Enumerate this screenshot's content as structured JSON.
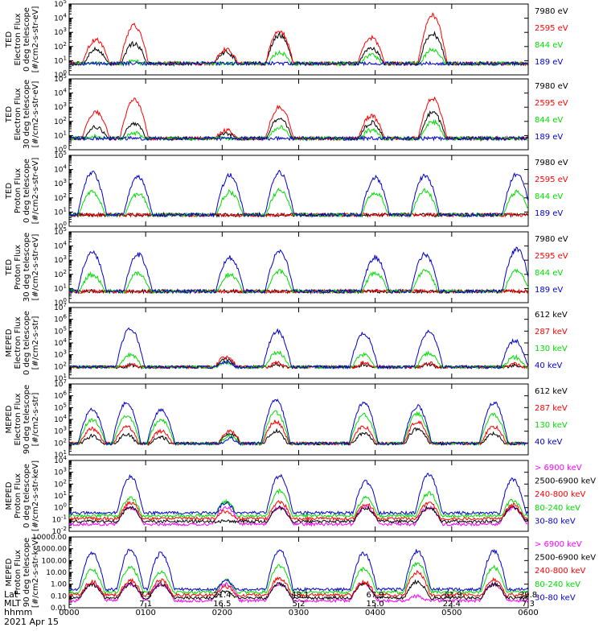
{
  "chart_data": [
    {
      "type": "line",
      "ylabel": [
        "TED",
        "Electron Flux",
        "0 deg telescope",
        "[#/cm2-s-str-eV]"
      ],
      "ylim": [
        1,
        100000
      ],
      "yscale": "log",
      "ytick_labels": [
        "10^0",
        "10^1",
        "10^2",
        "10^3",
        "10^4",
        "10^5"
      ],
      "series": [
        {
          "name": "7980 eV",
          "color": "#000000"
        },
        {
          "name": "2595 eV",
          "color": "#ff0000"
        },
        {
          "name": "844 eV",
          "color": "#00dd00"
        },
        {
          "name": "189 eV",
          "color": "#0000cc"
        }
      ],
      "bursts": [
        {
          "x": 0.35,
          "v": [
            1.8,
            2.5,
            0.8,
            0
          ]
        },
        {
          "x": 0.85,
          "v": [
            2.2,
            3.5,
            1.0,
            0
          ]
        },
        {
          "x": 2.05,
          "v": [
            1.6,
            1.8,
            0.6,
            0
          ]
        },
        {
          "x": 2.75,
          "v": [
            2.8,
            3.1,
            1.6,
            0
          ]
        },
        {
          "x": 3.95,
          "v": [
            1.9,
            2.6,
            1.4,
            0
          ]
        },
        {
          "x": 4.75,
          "v": [
            2.9,
            4.2,
            1.8,
            0
          ]
        }
      ]
    },
    {
      "type": "line",
      "ylabel": [
        "TED",
        "Electron Flux",
        "30 deg telescope",
        "[#/cm2-s-str-eV]"
      ],
      "ylim": [
        1,
        100000
      ],
      "yscale": "log",
      "ytick_labels": [
        "10^0",
        "10^1",
        "10^2",
        "10^3",
        "10^4",
        "10^5"
      ],
      "series": [
        {
          "name": "7980 eV",
          "color": "#000000"
        },
        {
          "name": "2595 eV",
          "color": "#ff0000"
        },
        {
          "name": "844 eV",
          "color": "#00dd00"
        },
        {
          "name": "189 eV",
          "color": "#0000cc"
        }
      ],
      "bursts": [
        {
          "x": 0.35,
          "v": [
            1.6,
            2.7,
            0.9,
            0
          ]
        },
        {
          "x": 0.85,
          "v": [
            1.8,
            3.5,
            1.2,
            0
          ]
        },
        {
          "x": 2.05,
          "v": [
            1.2,
            1.4,
            0.6,
            0
          ]
        },
        {
          "x": 2.75,
          "v": [
            2.2,
            3.0,
            1.6,
            0
          ]
        },
        {
          "x": 3.95,
          "v": [
            1.9,
            2.4,
            1.4,
            0
          ]
        },
        {
          "x": 4.75,
          "v": [
            2.6,
            3.6,
            2.0,
            0
          ]
        }
      ]
    },
    {
      "type": "line",
      "ylabel": [
        "TED",
        "Proton Flux",
        "0 deg telescope",
        "[#/cm2-s-str-eV]"
      ],
      "ylim": [
        1,
        100000
      ],
      "yscale": "log",
      "ytick_labels": [
        "10^0",
        "10^1",
        "10^2",
        "10^3",
        "10^4",
        "10^5"
      ],
      "series": [
        {
          "name": "7980 eV",
          "color": "#000000"
        },
        {
          "name": "2595 eV",
          "color": "#ff0000"
        },
        {
          "name": "844 eV",
          "color": "#00dd00"
        },
        {
          "name": "189 eV",
          "color": "#0000cc"
        }
      ],
      "bursts": [
        {
          "x": 0.3,
          "v": [
            0,
            0,
            2.4,
            3.8
          ]
        },
        {
          "x": 0.9,
          "v": [
            0,
            0,
            2.3,
            3.5
          ]
        },
        {
          "x": 2.1,
          "v": [
            0,
            0,
            2.4,
            3.6
          ]
        },
        {
          "x": 2.75,
          "v": [
            0,
            0,
            2.5,
            3.8
          ]
        },
        {
          "x": 4.0,
          "v": [
            0,
            0,
            2.4,
            3.4
          ]
        },
        {
          "x": 4.65,
          "v": [
            0,
            0,
            2.5,
            3.6
          ]
        },
        {
          "x": 5.85,
          "v": [
            0,
            0,
            2.4,
            3.7
          ]
        }
      ]
    },
    {
      "type": "line",
      "ylabel": [
        "TED",
        "Proton Flux",
        "30 deg telescope",
        "[#/cm2-s-str-eV]"
      ],
      "ylim": [
        1,
        100000
      ],
      "yscale": "log",
      "ytick_labels": [
        "10^0",
        "10^1",
        "10^2",
        "10^3",
        "10^4",
        "10^5"
      ],
      "series": [
        {
          "name": "7980 eV",
          "color": "#000000"
        },
        {
          "name": "2595 eV",
          "color": "#ff0000"
        },
        {
          "name": "844 eV",
          "color": "#00dd00"
        },
        {
          "name": "189 eV",
          "color": "#0000cc"
        }
      ],
      "bursts": [
        {
          "x": 0.3,
          "v": [
            0,
            0,
            2.0,
            3.6
          ]
        },
        {
          "x": 0.9,
          "v": [
            0,
            0,
            2.1,
            3.4
          ]
        },
        {
          "x": 2.1,
          "v": [
            0,
            0,
            2.0,
            3.2
          ]
        },
        {
          "x": 2.75,
          "v": [
            0,
            0,
            2.2,
            3.6
          ]
        },
        {
          "x": 4.0,
          "v": [
            0,
            0,
            2.1,
            3.2
          ]
        },
        {
          "x": 4.65,
          "v": [
            0,
            0,
            2.2,
            3.4
          ]
        },
        {
          "x": 5.85,
          "v": [
            0,
            0,
            2.2,
            3.8
          ]
        }
      ]
    },
    {
      "type": "line",
      "ylabel": [
        "MEPED",
        "Electron Flux",
        "0 deg telescope",
        "[#/cm2-s-str]"
      ],
      "ylim": [
        10,
        10000000
      ],
      "yscale": "log",
      "ytick_labels": [
        "10^1",
        "10^2",
        "10^3",
        "10^4",
        "10^5",
        "10^6",
        "10^7"
      ],
      "series": [
        {
          "name": "612 keV",
          "color": "#000000"
        },
        {
          "name": "287 keV",
          "color": "#ff0000"
        },
        {
          "name": "130 keV",
          "color": "#00dd00"
        },
        {
          "name": "40 keV",
          "color": "#0000cc"
        }
      ],
      "bursts": [
        {
          "x": 0.8,
          "v": [
            2.1,
            2.2,
            3.0,
            5.2
          ]
        },
        {
          "x": 2.05,
          "v": [
            2.6,
            2.8,
            2.4,
            2.4
          ]
        },
        {
          "x": 2.72,
          "v": [
            2.2,
            2.3,
            3.2,
            5.0
          ]
        },
        {
          "x": 3.85,
          "v": [
            2.2,
            2.3,
            3.0,
            4.8
          ]
        },
        {
          "x": 4.7,
          "v": [
            2.2,
            2.3,
            3.1,
            5.0
          ]
        },
        {
          "x": 5.82,
          "v": [
            2.1,
            2.2,
            2.8,
            4.2
          ]
        }
      ]
    },
    {
      "type": "line",
      "ylabel": [
        "MEPED",
        "Electron Flux",
        "90 deg telescope",
        "[#/cm2-s-str]"
      ],
      "ylim": [
        10,
        10000000
      ],
      "yscale": "log",
      "ytick_labels": [
        "10^1",
        "10^2",
        "10^3",
        "10^4",
        "10^5",
        "10^6",
        "10^7"
      ],
      "series": [
        {
          "name": "612 keV",
          "color": "#000000"
        },
        {
          "name": "287 keV",
          "color": "#ff0000"
        },
        {
          "name": "130 keV",
          "color": "#00dd00"
        },
        {
          "name": "40 keV",
          "color": "#0000cc"
        }
      ],
      "bursts": [
        {
          "x": 0.3,
          "v": [
            2.6,
            3.2,
            4.0,
            4.8
          ]
        },
        {
          "x": 0.75,
          "v": [
            2.7,
            3.4,
            4.3,
            5.4
          ]
        },
        {
          "x": 1.2,
          "v": [
            2.5,
            3.0,
            4.0,
            4.8
          ]
        },
        {
          "x": 2.1,
          "v": [
            2.8,
            3.0,
            2.6,
            2.4
          ]
        },
        {
          "x": 2.7,
          "v": [
            3.0,
            3.8,
            4.6,
            5.6
          ]
        },
        {
          "x": 3.85,
          "v": [
            2.8,
            3.4,
            4.4,
            5.4
          ]
        },
        {
          "x": 4.55,
          "v": [
            3.2,
            3.8,
            4.5,
            5.1
          ]
        },
        {
          "x": 5.55,
          "v": [
            2.8,
            3.4,
            4.4,
            5.4
          ]
        }
      ]
    },
    {
      "type": "line",
      "ylabel": [
        "MEPED",
        "Proton Flux",
        "0 deg telescope",
        "[#/cm2-s-str-keV]"
      ],
      "ylim": [
        0.01,
        10000
      ],
      "yscale": "log",
      "ytick_labels": [
        "10^-2",
        "10^-1",
        "10^0",
        "10^1",
        "10^2",
        "10^3",
        "10^4"
      ],
      "series": [
        {
          "name": "> 6900 keV",
          "color": "#ff00ff"
        },
        {
          "name": "2500-6900 keV",
          "color": "#000000"
        },
        {
          "name": "240-800 keV",
          "color": "#ff0000"
        },
        {
          "name": "80-240 keV",
          "color": "#00dd00"
        },
        {
          "name": "30-80 keV",
          "color": "#0000cc"
        }
      ],
      "bursts": [
        {
          "x": 0.8,
          "v": [
            0,
            0,
            0.4,
            0.8,
            2.6
          ]
        },
        {
          "x": 2.05,
          "v": [
            0,
            -1.3,
            -0.3,
            0.5,
            0.4
          ]
        },
        {
          "x": 2.75,
          "v": [
            0,
            0,
            0.5,
            1.4,
            2.7
          ]
        },
        {
          "x": 3.88,
          "v": [
            0,
            0,
            0.3,
            0.8,
            2.2
          ]
        },
        {
          "x": 4.7,
          "v": [
            0,
            0,
            0.4,
            1.2,
            2.8
          ]
        },
        {
          "x": 5.8,
          "v": [
            0,
            0,
            0.2,
            0.6,
            2.4
          ]
        }
      ]
    },
    {
      "type": "line",
      "ylabel": [
        "MEPED",
        "Proton Flux",
        "90 deg telescope",
        "[#/cm2-s-str-keV]"
      ],
      "ylim": [
        0.01,
        10000
      ],
      "yscale": "log",
      "ytick_labels": [
        "0.01",
        "0.10",
        "1.00",
        "10.00",
        "100.00",
        "1000.00",
        "10000.00"
      ],
      "series": [
        {
          "name": "> 6900 keV",
          "color": "#ff00ff"
        },
        {
          "name": "2500-6900 keV",
          "color": "#000000"
        },
        {
          "name": "240-800 keV",
          "color": "#ff0000"
        },
        {
          "name": "80-240 keV",
          "color": "#00dd00"
        },
        {
          "name": "30-80 keV",
          "color": "#0000cc"
        }
      ],
      "bursts": [
        {
          "x": 0.3,
          "v": [
            0,
            0,
            0.2,
            1.2,
            2.6
          ]
        },
        {
          "x": 0.8,
          "v": [
            0,
            0,
            0.3,
            1.4,
            2.9
          ]
        },
        {
          "x": 1.2,
          "v": [
            0,
            0,
            0.3,
            1.0,
            2.6
          ]
        },
        {
          "x": 2.05,
          "v": [
            0,
            -0.6,
            -0.2,
            0.3,
            0.3
          ]
        },
        {
          "x": 2.75,
          "v": [
            0,
            0,
            0.5,
            1.6,
            2.9
          ]
        },
        {
          "x": 3.85,
          "v": [
            0,
            0,
            0.2,
            1.3,
            2.6
          ]
        },
        {
          "x": 4.55,
          "v": [
            -1.0,
            0.2,
            1.0,
            1.8,
            2.8
          ]
        },
        {
          "x": 5.55,
          "v": [
            0,
            0,
            0.4,
            1.4,
            2.8
          ]
        }
      ]
    }
  ],
  "x_axis": {
    "row_labels": [
      "Lat",
      "MLT",
      "hhmm"
    ],
    "date": "2021 Apr 15",
    "hhmm_ticks": [
      "0000",
      "0100",
      "0200",
      "0300",
      "0400",
      "0500",
      "0600"
    ],
    "lat_ticks": [
      "",
      "7.5",
      "21.4",
      "-48.1",
      "67.9",
      "-61.9",
      "39.8"
    ],
    "mlt_ticks": [
      "",
      "7.1",
      "16.5",
      "5.2",
      "15.0",
      "22.4",
      "7.3"
    ]
  }
}
